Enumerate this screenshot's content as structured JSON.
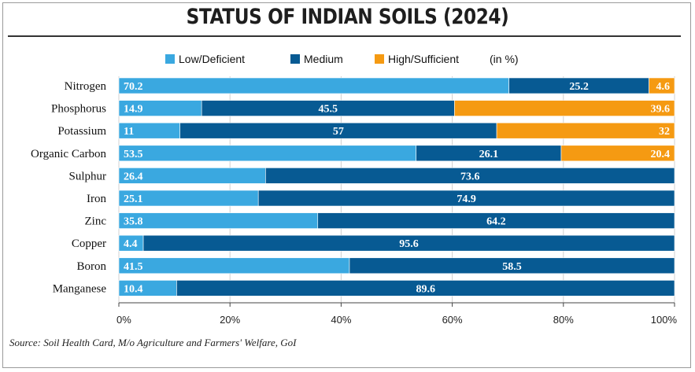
{
  "chart_data": {
    "type": "bar",
    "orientation": "horizontal-stacked-100",
    "title": "STATUS OF INDIAN SOILS (2024)",
    "unit_note": "(in %)",
    "categories": [
      "Nitrogen",
      "Phosphorus",
      "Potassium",
      "Organic Carbon",
      "Sulphur",
      "Iron",
      "Zinc",
      "Copper",
      "Boron",
      "Manganese"
    ],
    "series": [
      {
        "name": "Low/Deficient",
        "color": "#3aa8e0",
        "values": [
          70.2,
          14.9,
          11,
          53.5,
          26.4,
          25.1,
          35.8,
          4.4,
          41.5,
          10.4
        ]
      },
      {
        "name": "Medium",
        "color": "#075a93",
        "values": [
          25.2,
          45.5,
          57,
          26.1,
          73.6,
          74.9,
          64.2,
          95.6,
          58.5,
          89.6
        ]
      },
      {
        "name": "High/Sufficient",
        "color": "#f59a12",
        "values": [
          4.6,
          39.6,
          32,
          20.4,
          0,
          0,
          0,
          0,
          0,
          0
        ]
      }
    ],
    "xlim": [
      0,
      100
    ],
    "xticks": [
      "0%",
      "20%",
      "40%",
      "60%",
      "80%",
      "100%"
    ],
    "xlabel": "",
    "ylabel": "",
    "source": "Source: Soil Health Card, M/o Agriculture and Farmers' Welfare, GoI"
  }
}
